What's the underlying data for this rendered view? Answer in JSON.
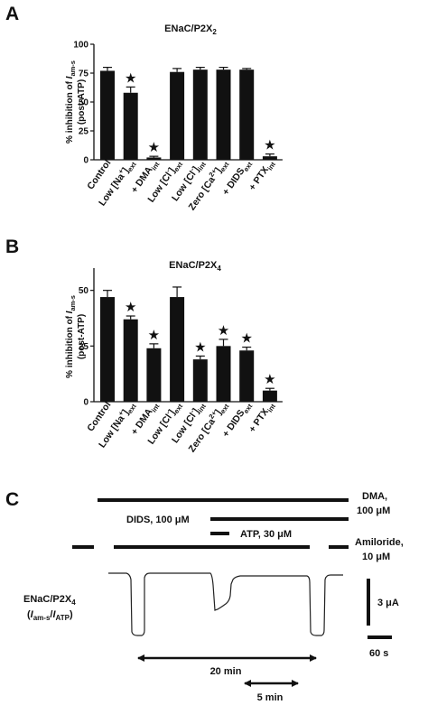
{
  "panels": {
    "a": {
      "letter": "A",
      "title": "ENaC/P2X",
      "title_sub": "2"
    },
    "b": {
      "letter": "B",
      "title": "ENaC/P2X",
      "title_sub": "4"
    },
    "c": {
      "letter": "C"
    }
  },
  "y_axis_label": {
    "line1_prefix": "% inhibition of ",
    "line1_italic": "I",
    "line1_sub": "am-s",
    "line2": "(post-ATP)"
  },
  "categories": [
    {
      "main": "Control",
      "sup": "",
      "tail": "",
      "sub": ""
    },
    {
      "main": "Low [Na",
      "sup": "+",
      "tail": "]",
      "sub": "ext"
    },
    {
      "main": "+ DMA",
      "sup": "",
      "tail": "",
      "sub": "int"
    },
    {
      "main": "Low [Cl",
      "sup": "-",
      "tail": "]",
      "sub": "ext"
    },
    {
      "main": "Low [Cl",
      "sup": "-",
      "tail": "]",
      "sub": "int"
    },
    {
      "main": "Zero [Ca",
      "sup": "2+",
      "tail": "]",
      "sub": "ext"
    },
    {
      "main": "+ DIDS",
      "sup": "",
      "tail": "",
      "sub": "ext"
    },
    {
      "main": "+ PTX",
      "sup": "",
      "tail": "",
      "sub": "int"
    }
  ],
  "chart_data": [
    {
      "type": "bar",
      "title": "ENaC/P2X2",
      "ylabel": "% inhibition of Iam-s (post-ATP)",
      "categories": [
        "Control",
        "Low [Na+]ext",
        "+ DMAint",
        "Low [Cl-]ext",
        "Low [Cl-]int",
        "Zero [Ca2+]ext",
        "+ DIDSext",
        "+ PTXint"
      ],
      "values": [
        77,
        58,
        2,
        76,
        78,
        78,
        78,
        3
      ],
      "errors": [
        3,
        5,
        1,
        3,
        2,
        2,
        1,
        2
      ],
      "significant": [
        false,
        true,
        true,
        false,
        false,
        false,
        false,
        true
      ],
      "ylim": [
        0,
        100
      ],
      "yticks": [
        0,
        25,
        50,
        75,
        100
      ],
      "grid": false
    },
    {
      "type": "bar",
      "title": "ENaC/P2X4",
      "ylabel": "% inhibition of Iam-s (post-ATP)",
      "categories": [
        "Control",
        "Low [Na+]ext",
        "+ DMAint",
        "Low [Cl-]ext",
        "Low [Cl-]int",
        "Zero [Ca2+]ext",
        "+ DIDSext",
        "+ PTXint"
      ],
      "values": [
        47,
        37,
        24,
        47,
        19,
        25,
        23,
        5
      ],
      "errors": [
        3,
        1.5,
        2,
        4.5,
        1.5,
        3,
        1.5,
        1
      ],
      "significant": [
        false,
        true,
        true,
        false,
        true,
        true,
        true,
        true
      ],
      "ylim": [
        0,
        60
      ],
      "yticks": [
        0,
        25,
        50
      ],
      "grid": false
    }
  ],
  "trace": {
    "protocol": [
      {
        "text": "DMA,",
        "text2": "100 μM"
      },
      {
        "text": "DIDS, 100 μM"
      },
      {
        "text": "ATP, 30 μM"
      },
      {
        "text": "Amiloride,",
        "text2": "10 μM"
      }
    ],
    "trace_label": {
      "line1": "ENaC/P2X",
      "line1_sub": "4",
      "line2_open": "(",
      "I1": "I",
      "I1_sub": "am-s",
      "slash": "/",
      "I2": "I",
      "I2_sub": "ATP",
      "line2_close": ")"
    },
    "scale_y": "3 μA",
    "scale_x": "60 s",
    "interval_long": "20 min",
    "interval_short": "5 min"
  }
}
